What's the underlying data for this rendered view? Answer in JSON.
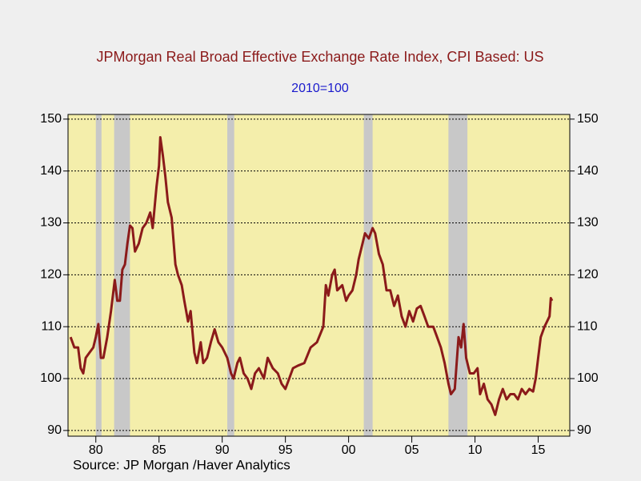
{
  "chart_data": {
    "type": "line",
    "title": "JPMorgan Real Broad Effective Exchange Rate Index, CPI Based: US",
    "subtitle": "2010=100",
    "source": "Source:  JP Morgan /Haver Analytics",
    "xlim": [
      1977.8,
      2017.5
    ],
    "ylim": [
      88.9,
      150.9
    ],
    "yticks": [
      90,
      100,
      110,
      120,
      130,
      140,
      150
    ],
    "xticks": [
      {
        "value": 1980,
        "label": "80"
      },
      {
        "value": 1985,
        "label": "85"
      },
      {
        "value": 1990,
        "label": "90"
      },
      {
        "value": 1995,
        "label": "95"
      },
      {
        "value": 2000,
        "label": "00"
      },
      {
        "value": 2005,
        "label": "05"
      },
      {
        "value": 2010,
        "label": "10"
      },
      {
        "value": 2015,
        "label": "15"
      }
    ],
    "grid": true,
    "recessions": [
      [
        1980.0,
        1980.45
      ],
      [
        1981.45,
        1982.7
      ],
      [
        1990.4,
        1990.95
      ],
      [
        2001.2,
        2001.9
      ],
      [
        2007.9,
        2009.4
      ]
    ],
    "recession_color": "#c8c8c8",
    "plot_color": "#f4eeab",
    "series": [
      {
        "name": "Index",
        "color": "#8b1a1a",
        "x": [
          1978.0,
          1978.3,
          1978.6,
          1978.8,
          1979.0,
          1979.2,
          1979.5,
          1979.8,
          1980.0,
          1980.2,
          1980.4,
          1980.6,
          1980.9,
          1981.2,
          1981.5,
          1981.7,
          1981.9,
          1982.1,
          1982.3,
          1982.5,
          1982.7,
          1982.9,
          1983.1,
          1983.4,
          1983.7,
          1984.0,
          1984.3,
          1984.5,
          1984.8,
          1985.0,
          1985.1,
          1985.3,
          1985.5,
          1985.7,
          1986.0,
          1986.3,
          1986.5,
          1986.8,
          1987.0,
          1987.3,
          1987.5,
          1987.8,
          1988.0,
          1988.3,
          1988.5,
          1988.8,
          1989.1,
          1989.4,
          1989.7,
          1990.0,
          1990.4,
          1990.7,
          1990.9,
          1991.2,
          1991.4,
          1991.7,
          1992.0,
          1992.3,
          1992.6,
          1992.9,
          1993.3,
          1993.6,
          1994.0,
          1994.4,
          1994.7,
          1995.0,
          1995.3,
          1995.6,
          1996.0,
          1996.5,
          1997.0,
          1997.5,
          1998.0,
          1998.2,
          1998.4,
          1998.7,
          1998.9,
          1999.1,
          1999.5,
          1999.8,
          2000.0,
          2000.3,
          2000.6,
          2000.8,
          2001.0,
          2001.3,
          2001.6,
          2001.9,
          2002.1,
          2002.4,
          2002.7,
          2003.0,
          2003.3,
          2003.6,
          2003.9,
          2004.2,
          2004.5,
          2004.8,
          2005.1,
          2005.4,
          2005.7,
          2006.0,
          2006.3,
          2006.7,
          2007.0,
          2007.3,
          2007.6,
          2007.9,
          2008.1,
          2008.4,
          2008.7,
          2008.9,
          2009.1,
          2009.3,
          2009.6,
          2009.9,
          2010.2,
          2010.4,
          2010.7,
          2011.0,
          2011.3,
          2011.6,
          2011.9,
          2012.2,
          2012.5,
          2012.8,
          2013.1,
          2013.4,
          2013.7,
          2014.0,
          2014.3,
          2014.6,
          2014.8,
          2015.0,
          2015.2,
          2015.5,
          2015.7,
          2015.9,
          2016.0,
          2016.1
        ],
        "values": [
          108,
          106,
          106,
          102,
          101,
          104,
          105,
          106,
          108,
          110.5,
          104,
          104,
          108,
          113,
          119,
          115,
          115,
          121,
          122,
          126,
          129.5,
          129,
          124.5,
          126,
          129,
          130,
          132,
          129,
          137,
          141,
          146.5,
          143,
          139,
          134,
          131,
          122,
          120,
          118,
          115,
          111,
          113,
          105,
          103,
          107,
          103,
          104,
          107,
          109.5,
          107,
          106,
          104,
          101,
          100,
          103,
          104,
          101,
          100,
          98,
          101,
          102,
          100,
          104,
          102,
          101,
          99,
          98,
          100,
          102,
          102.5,
          103,
          106,
          107,
          110,
          118,
          116,
          120,
          121,
          117,
          118,
          115,
          116,
          117,
          120,
          123,
          125,
          128,
          127,
          129,
          128,
          124,
          122,
          117,
          117,
          114,
          116,
          112,
          110,
          113,
          111,
          113.5,
          114,
          112,
          110,
          110,
          108,
          106,
          103,
          99,
          97,
          98,
          108,
          106,
          110.5,
          104,
          101,
          101,
          102,
          97,
          99,
          96,
          95,
          93,
          96,
          98,
          96,
          97,
          97,
          96,
          98,
          97,
          98,
          97.5,
          100,
          104,
          108,
          110,
          111,
          112,
          115.5,
          115
        ]
      }
    ]
  }
}
